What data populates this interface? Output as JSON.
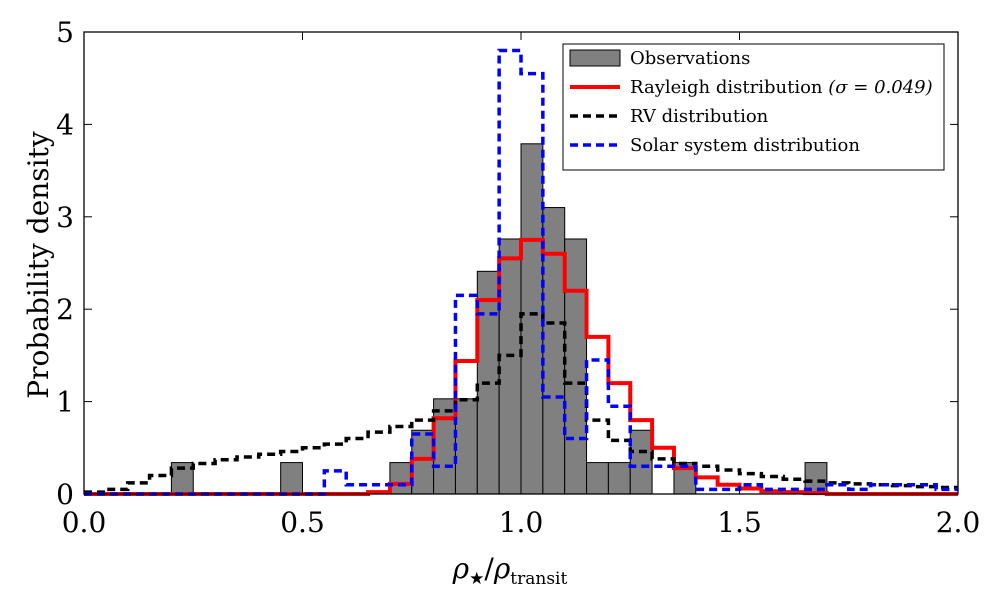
{
  "chart_data": {
    "type": "histogram",
    "title": "",
    "xlabel": {
      "rho": "ρ",
      "star": "★",
      "slash": "/",
      "rho2": "ρ",
      "sub": "transit"
    },
    "ylabel": "Probability density",
    "xlim": [
      0.0,
      2.0
    ],
    "ylim": [
      0,
      5
    ],
    "xticks": [
      0.0,
      0.5,
      1.0,
      1.5,
      2.0
    ],
    "xtick_labels": [
      "0.0",
      "0.5",
      "1.0",
      "1.5",
      "2.0"
    ],
    "yticks": [
      0,
      1,
      2,
      3,
      4,
      5
    ],
    "ytick_labels": [
      "0",
      "1",
      "2",
      "3",
      "4",
      "5"
    ],
    "bin_edges": [
      0.0,
      0.05,
      0.1,
      0.15,
      0.2,
      0.25,
      0.3,
      0.35,
      0.4,
      0.45,
      0.5,
      0.55,
      0.6,
      0.65,
      0.7,
      0.75,
      0.8,
      0.85,
      0.9,
      0.95,
      1.0,
      1.05,
      1.1,
      1.15,
      1.2,
      1.25,
      1.3,
      1.35,
      1.4,
      1.45,
      1.5,
      1.55,
      1.6,
      1.65,
      1.7,
      1.75,
      1.8,
      1.85,
      1.9,
      1.95,
      2.0
    ],
    "series": [
      {
        "name": "Observations",
        "kind": "filled-bars",
        "color": "#808080",
        "values": [
          0,
          0,
          0,
          0,
          0.34,
          0,
          0,
          0,
          0,
          0.34,
          0,
          0,
          0,
          0,
          0.34,
          0.69,
          1.03,
          1.03,
          2.41,
          2.76,
          3.79,
          3.1,
          2.76,
          0.34,
          0.34,
          0.69,
          0,
          0.34,
          0,
          0,
          0,
          0,
          0,
          0.34,
          0,
          0,
          0,
          0,
          0,
          0
        ]
      },
      {
        "name": "Rayleigh distribution",
        "label_suffix": "(σ = 0.049)",
        "kind": "step",
        "color": "#ff0000",
        "dash": "solid",
        "values": [
          0,
          0,
          0,
          0,
          0,
          0,
          0,
          0,
          0,
          0,
          0,
          0,
          0,
          0.02,
          0.11,
          0.38,
          0.82,
          1.44,
          2.1,
          2.55,
          2.75,
          2.6,
          2.2,
          1.7,
          1.2,
          0.8,
          0.5,
          0.28,
          0.18,
          0.1,
          0.06,
          0.03,
          0.02,
          0.01,
          0,
          0,
          0,
          0,
          0,
          0
        ]
      },
      {
        "name": "RV distribution",
        "kind": "step",
        "color": "#000000",
        "dash": "dashed",
        "values": [
          0.02,
          0.05,
          0.12,
          0.2,
          0.28,
          0.33,
          0.37,
          0.4,
          0.43,
          0.46,
          0.5,
          0.54,
          0.6,
          0.67,
          0.73,
          0.8,
          0.9,
          1.02,
          1.2,
          1.5,
          1.95,
          1.85,
          1.2,
          0.8,
          0.58,
          0.46,
          0.38,
          0.33,
          0.3,
          0.26,
          0.22,
          0.19,
          0.16,
          0.14,
          0.12,
          0.11,
          0.1,
          0.09,
          0.08,
          0.07
        ]
      },
      {
        "name": "Solar system distribution",
        "kind": "step",
        "color": "#0000ff",
        "dash": "dashed",
        "values": [
          0,
          0,
          0,
          0,
          0,
          0,
          0,
          0,
          0,
          0,
          0,
          0.25,
          0.1,
          0.1,
          0.1,
          0.65,
          0.3,
          2.15,
          1.95,
          4.8,
          4.55,
          1.05,
          0.6,
          1.45,
          0.95,
          0.3,
          0.3,
          0.3,
          0.05,
          0.05,
          0.1,
          0.05,
          0.05,
          0.05,
          0.1,
          0.05,
          0.1,
          0.1,
          0.1,
          0.05
        ]
      }
    ],
    "legend": {
      "position": "top-right",
      "entries": [
        {
          "label": "Observations",
          "suffix": ""
        },
        {
          "label": "Rayleigh distribution",
          "suffix": "(σ = 0.049)"
        },
        {
          "label": "RV distribution",
          "suffix": ""
        },
        {
          "label": "Solar system distribution",
          "suffix": ""
        }
      ]
    }
  }
}
